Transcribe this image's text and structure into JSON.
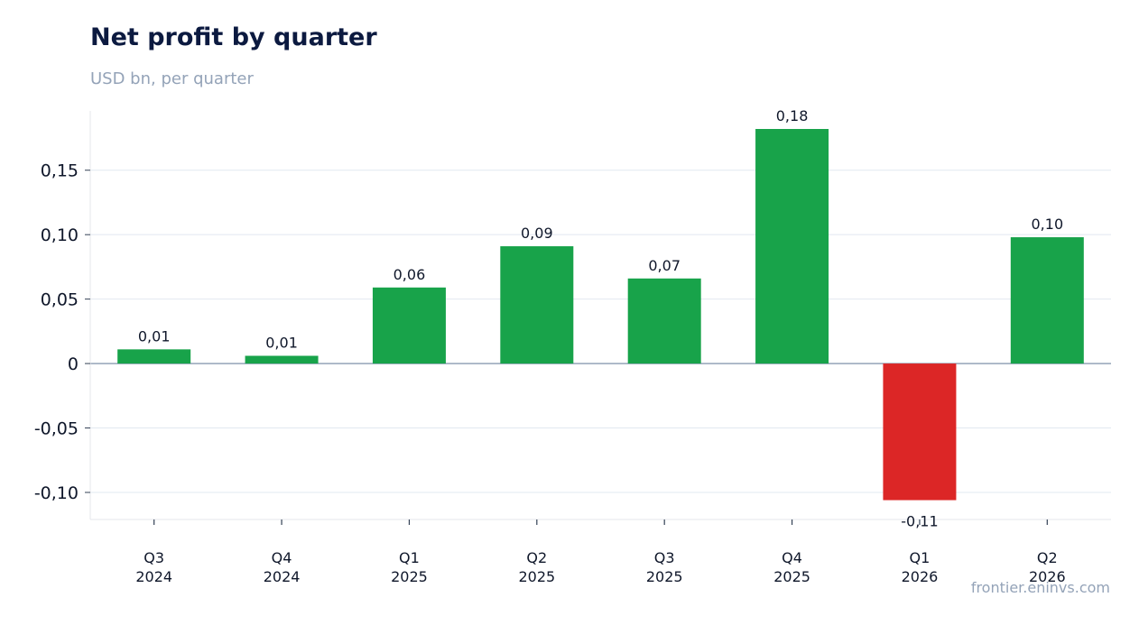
{
  "header": {
    "title": "Net profit by quarter",
    "subtitle": "USD bn, per quarter"
  },
  "footer": {
    "source": "frontier.eninvs.com"
  },
  "colors": {
    "positive": "#18a34a",
    "negative": "#dc2626",
    "grid": "#e2e8f0",
    "zero_line": "#94a3b8"
  },
  "chart_data": {
    "type": "bar",
    "categories": [
      [
        "Q3",
        "2024"
      ],
      [
        "Q4",
        "2024"
      ],
      [
        "Q1",
        "2025"
      ],
      [
        "Q2",
        "2025"
      ],
      [
        "Q3",
        "2025"
      ],
      [
        "Q4",
        "2025"
      ],
      [
        "Q1",
        "2026"
      ],
      [
        "Q2",
        "2026"
      ]
    ],
    "values": [
      0.011,
      0.006,
      0.059,
      0.091,
      0.066,
      0.182,
      -0.106,
      0.098
    ],
    "data_labels": [
      "0,01",
      "0,01",
      "0,06",
      "0,09",
      "0,07",
      "0,18",
      "-0,11",
      "0,10"
    ],
    "yticks": [
      -0.1,
      -0.05,
      0,
      0.05,
      0.1,
      0.15
    ],
    "ytick_labels": [
      "-0,10",
      "-0,05",
      "0",
      "0,05",
      "0,10",
      "0,15"
    ],
    "ylim": [
      -0.121,
      0.196
    ],
    "grid": true,
    "legend": "none"
  }
}
